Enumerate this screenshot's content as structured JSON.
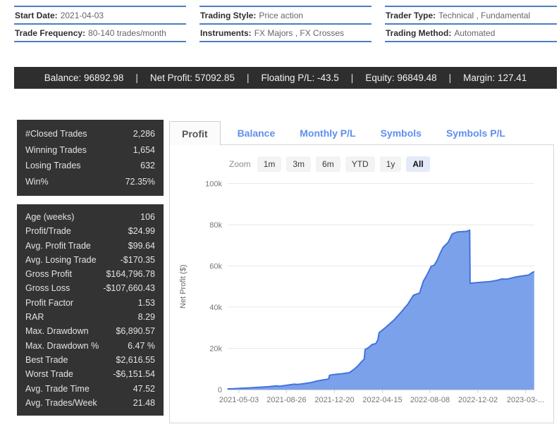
{
  "info_grid": {
    "cells": [
      {
        "label": "Start Date:",
        "value": "2021-04-03"
      },
      {
        "label": "Trading Style:",
        "value": "Price action"
      },
      {
        "label": "Trader Type:",
        "value": "Technical , Fundamental"
      },
      {
        "label": "Trade Frequency:",
        "value": "80-140 trades/month"
      },
      {
        "label": "Instruments:",
        "value": "FX Majors , FX Crosses"
      },
      {
        "label": "Trading Method:",
        "value": "Automated"
      }
    ]
  },
  "summary_bar": {
    "separator": "|",
    "items": [
      {
        "label": "Balance:",
        "value": "96892.98"
      },
      {
        "label": "Net Profit:",
        "value": "57092.85"
      },
      {
        "label": "Floating P/L:",
        "value": "-43.5"
      },
      {
        "label": "Equity:",
        "value": "96849.48"
      },
      {
        "label": "Margin:",
        "value": "127.41"
      }
    ]
  },
  "stats_panels": [
    {
      "rows": [
        {
          "label": "#Closed Trades",
          "value": "2,286"
        },
        {
          "label": "Winning Trades",
          "value": "1,654"
        },
        {
          "label": "Losing Trades",
          "value": "632"
        },
        {
          "label": "Win%",
          "value": "72.35%"
        }
      ]
    },
    {
      "rows": [
        {
          "label": "Age (weeks)",
          "value": "106"
        },
        {
          "label": "Profit/Trade",
          "value": "$24.99"
        },
        {
          "label": "Avg. Profit Trade",
          "value": "$99.64"
        },
        {
          "label": "Avg. Losing Trade",
          "value": "-$170.35"
        },
        {
          "label": "Gross Profit",
          "value": "$164,796.78"
        },
        {
          "label": "Gross Loss",
          "value": "-$107,660.43"
        },
        {
          "label": "Profit Factor",
          "value": "1.53"
        },
        {
          "label": "RAR",
          "value": "8.29"
        },
        {
          "label": "Max. Drawdown",
          "value": "$6,890.57"
        },
        {
          "label": "Max. Drawdown %",
          "value": "6.47 %"
        },
        {
          "label": "Best Trade",
          "value": "$2,616.55"
        },
        {
          "label": "Worst Trade",
          "value": "-$6,151.54"
        },
        {
          "label": "Avg. Trade Time",
          "value": "47.52"
        },
        {
          "label": "Avg. Trades/Week",
          "value": "21.48"
        }
      ]
    }
  ],
  "tabs": [
    {
      "label": "Profit",
      "active": true
    },
    {
      "label": "Balance",
      "active": false
    },
    {
      "label": "Monthly P/L",
      "active": false
    },
    {
      "label": "Symbols",
      "active": false
    },
    {
      "label": "Symbols P/L",
      "active": false
    }
  ],
  "zoom_controls": {
    "label": "Zoom",
    "buttons": [
      {
        "label": "1m",
        "active": false
      },
      {
        "label": "3m",
        "active": false
      },
      {
        "label": "6m",
        "active": false
      },
      {
        "label": "YTD",
        "active": false
      },
      {
        "label": "1y",
        "active": false
      },
      {
        "label": "All",
        "active": true
      }
    ]
  },
  "chart_data": {
    "type": "area",
    "title": "",
    "xlabel": "",
    "ylabel": "Net Profit ($)",
    "ylim": [
      0,
      100000
    ],
    "grid": true,
    "legend": false,
    "colors": {
      "area_fill": "#7ba1ea",
      "line": "#4373e0",
      "gridline": "#e8e8e8",
      "axis": "#cfcfcf",
      "tick_text": "#757575"
    },
    "yticks": [
      {
        "v": 0,
        "label": "0"
      },
      {
        "v": 20000,
        "label": "20k"
      },
      {
        "v": 40000,
        "label": "40k"
      },
      {
        "v": 60000,
        "label": "60k"
      },
      {
        "v": 80000,
        "label": "80k"
      },
      {
        "v": 100000,
        "label": "100k"
      }
    ],
    "xticks": [
      {
        "date": "2021-05-03",
        "label": "2021-05-03"
      },
      {
        "date": "2021-08-26",
        "label": "2021-08-26"
      },
      {
        "date": "2021-12-20",
        "label": "2021-12-20"
      },
      {
        "date": "2022-04-15",
        "label": "2022-04-15"
      },
      {
        "date": "2022-08-08",
        "label": "2022-08-08"
      },
      {
        "date": "2022-12-02",
        "label": "2022-12-02"
      },
      {
        "date": "2023-03-27",
        "label": "2023-03-..."
      }
    ],
    "series": [
      {
        "name": "Net Profit",
        "points": [
          [
            "2021-04-05",
            300
          ],
          [
            "2021-04-20",
            400
          ],
          [
            "2021-05-06",
            600
          ],
          [
            "2021-05-25",
            800
          ],
          [
            "2021-06-10",
            1000
          ],
          [
            "2021-06-28",
            1200
          ],
          [
            "2021-07-15",
            1400
          ],
          [
            "2021-08-01",
            1800
          ],
          [
            "2021-08-10",
            1600
          ],
          [
            "2021-08-27",
            2100
          ],
          [
            "2021-09-13",
            2600
          ],
          [
            "2021-09-22",
            2500
          ],
          [
            "2021-10-09",
            2900
          ],
          [
            "2021-10-26",
            3500
          ],
          [
            "2021-11-07",
            4100
          ],
          [
            "2021-11-21",
            4600
          ],
          [
            "2021-12-03",
            5000
          ],
          [
            "2021-12-06",
            5200
          ],
          [
            "2021-12-08",
            6900
          ],
          [
            "2021-12-17",
            7300
          ],
          [
            "2022-01-08",
            7700
          ],
          [
            "2022-01-25",
            8200
          ],
          [
            "2022-02-06",
            9900
          ],
          [
            "2022-02-15",
            11600
          ],
          [
            "2022-02-23",
            13400
          ],
          [
            "2022-03-02",
            14800
          ],
          [
            "2022-03-04",
            19400
          ],
          [
            "2022-03-12",
            20300
          ],
          [
            "2022-03-21",
            21900
          ],
          [
            "2022-03-30",
            22300
          ],
          [
            "2022-04-04",
            24200
          ],
          [
            "2022-04-07",
            27600
          ],
          [
            "2022-04-15",
            28900
          ],
          [
            "2022-04-24",
            30400
          ],
          [
            "2022-05-12",
            33600
          ],
          [
            "2022-05-29",
            37300
          ],
          [
            "2022-06-15",
            41300
          ],
          [
            "2022-06-29",
            45800
          ],
          [
            "2022-07-14",
            46900
          ],
          [
            "2022-07-23",
            52600
          ],
          [
            "2022-08-02",
            56100
          ],
          [
            "2022-08-11",
            59800
          ],
          [
            "2022-08-18",
            60300
          ],
          [
            "2022-08-26",
            63000
          ],
          [
            "2022-09-02",
            66300
          ],
          [
            "2022-09-09",
            69100
          ],
          [
            "2022-09-21",
            71500
          ],
          [
            "2022-10-01",
            75600
          ],
          [
            "2022-10-13",
            76500
          ],
          [
            "2022-11-05",
            76800
          ],
          [
            "2022-11-12",
            77400
          ],
          [
            "2022-11-13",
            51600
          ],
          [
            "2022-11-29",
            51900
          ],
          [
            "2022-12-30",
            52400
          ],
          [
            "2023-01-17",
            53000
          ],
          [
            "2023-01-29",
            53700
          ],
          [
            "2023-02-10",
            53600
          ],
          [
            "2023-03-04",
            54700
          ],
          [
            "2023-03-21",
            55200
          ],
          [
            "2023-04-04",
            55600
          ],
          [
            "2023-04-10",
            56500
          ],
          [
            "2023-04-17",
            57300
          ]
        ]
      }
    ]
  }
}
